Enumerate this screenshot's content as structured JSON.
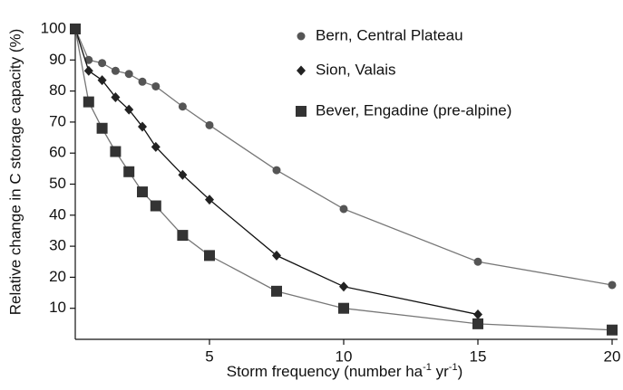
{
  "chart_data": {
    "type": "line",
    "xlabel": [
      "Storm frequency (number ha",
      "-1",
      " yr",
      "-1",
      ")"
    ],
    "ylabel": "Relative change in C storage capacity (%)",
    "xlim": [
      0,
      20
    ],
    "ylim": [
      0,
      100
    ],
    "xticks": [
      5,
      10,
      15,
      20
    ],
    "yticks": [
      10,
      20,
      30,
      40,
      50,
      60,
      70,
      80,
      90,
      100
    ],
    "legend": "upper center",
    "series": [
      {
        "name": "Bern, Central Plateau",
        "color": "#555555",
        "line_color": "#777777",
        "marker": "circle",
        "x": [
          0,
          0.5,
          1,
          1.5,
          2,
          2.5,
          3,
          4,
          5,
          7.5,
          10,
          15,
          20
        ],
        "values": [
          100,
          90,
          89,
          86.5,
          85.5,
          83,
          81.5,
          75,
          69,
          54.5,
          42,
          25,
          17.5
        ]
      },
      {
        "name": "Sion, Valais",
        "color": "#222222",
        "line_color": "#111111",
        "marker": "diamond",
        "x": [
          0,
          0.5,
          1,
          1.5,
          2,
          2.5,
          3,
          4,
          5,
          7.5,
          10,
          15
        ],
        "values": [
          100,
          86.5,
          83.5,
          78,
          74,
          68.5,
          62,
          53,
          45,
          27,
          17,
          8
        ]
      },
      {
        "name": "Bever, Engadine (pre-alpine)",
        "color": "#333333",
        "line_color": "#777777",
        "marker": "square",
        "x": [
          0,
          0.5,
          1,
          1.5,
          2,
          2.5,
          3,
          4,
          5,
          7.5,
          10,
          15,
          20
        ],
        "values": [
          100,
          76.5,
          68,
          60.5,
          54,
          47.5,
          43,
          33.5,
          27,
          15.5,
          10,
          5,
          3
        ]
      }
    ]
  }
}
